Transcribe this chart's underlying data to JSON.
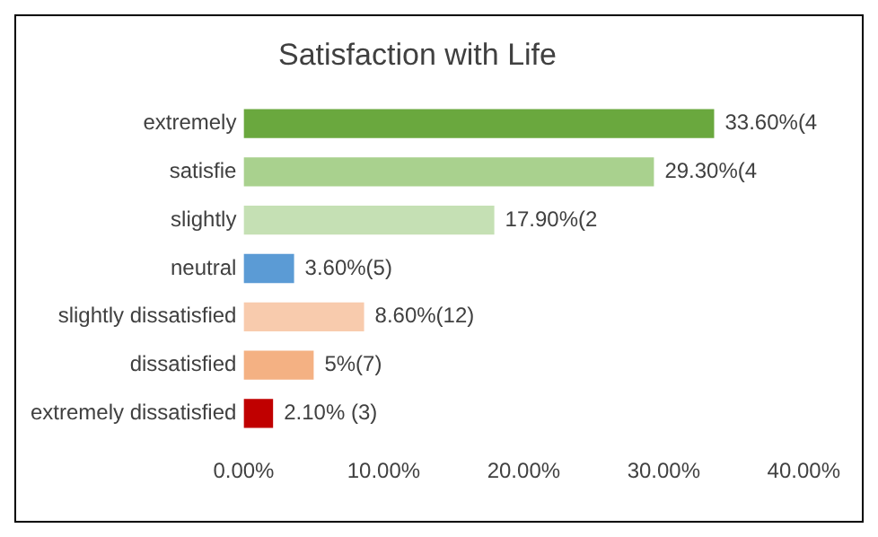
{
  "chart_data": {
    "type": "bar",
    "orientation": "horizontal",
    "title": "Satisfaction with Life",
    "categories": [
      "extremely",
      "satisfie",
      "slightly",
      "neutral",
      "slightly dissatisfied",
      "dissatisfied",
      "extremely dissatisfied"
    ],
    "values": [
      33.6,
      29.3,
      17.9,
      3.6,
      8.6,
      5,
      2.1
    ],
    "colors": [
      "#6aa83e",
      "#a9d18e",
      "#c5e0b4",
      "#5b9bd5",
      "#f8cbad",
      "#f4b183",
      "#c00000"
    ],
    "value_labels": [
      "33.60%(4",
      "29.30%(4",
      "17.90%(2",
      "3.60%(5)",
      "8.60%(12)",
      "5%(7)",
      "2.10% (3)"
    ],
    "xlim": [
      0,
      40
    ],
    "xticks": [
      {
        "value": 0,
        "label": "0.00%"
      },
      {
        "value": 10,
        "label": "10.00%"
      },
      {
        "value": 20,
        "label": "20.00%"
      },
      {
        "value": 30,
        "label": "30.00%"
      },
      {
        "value": 40,
        "label": "40.00%"
      }
    ],
    "grid": false,
    "legend": false
  }
}
